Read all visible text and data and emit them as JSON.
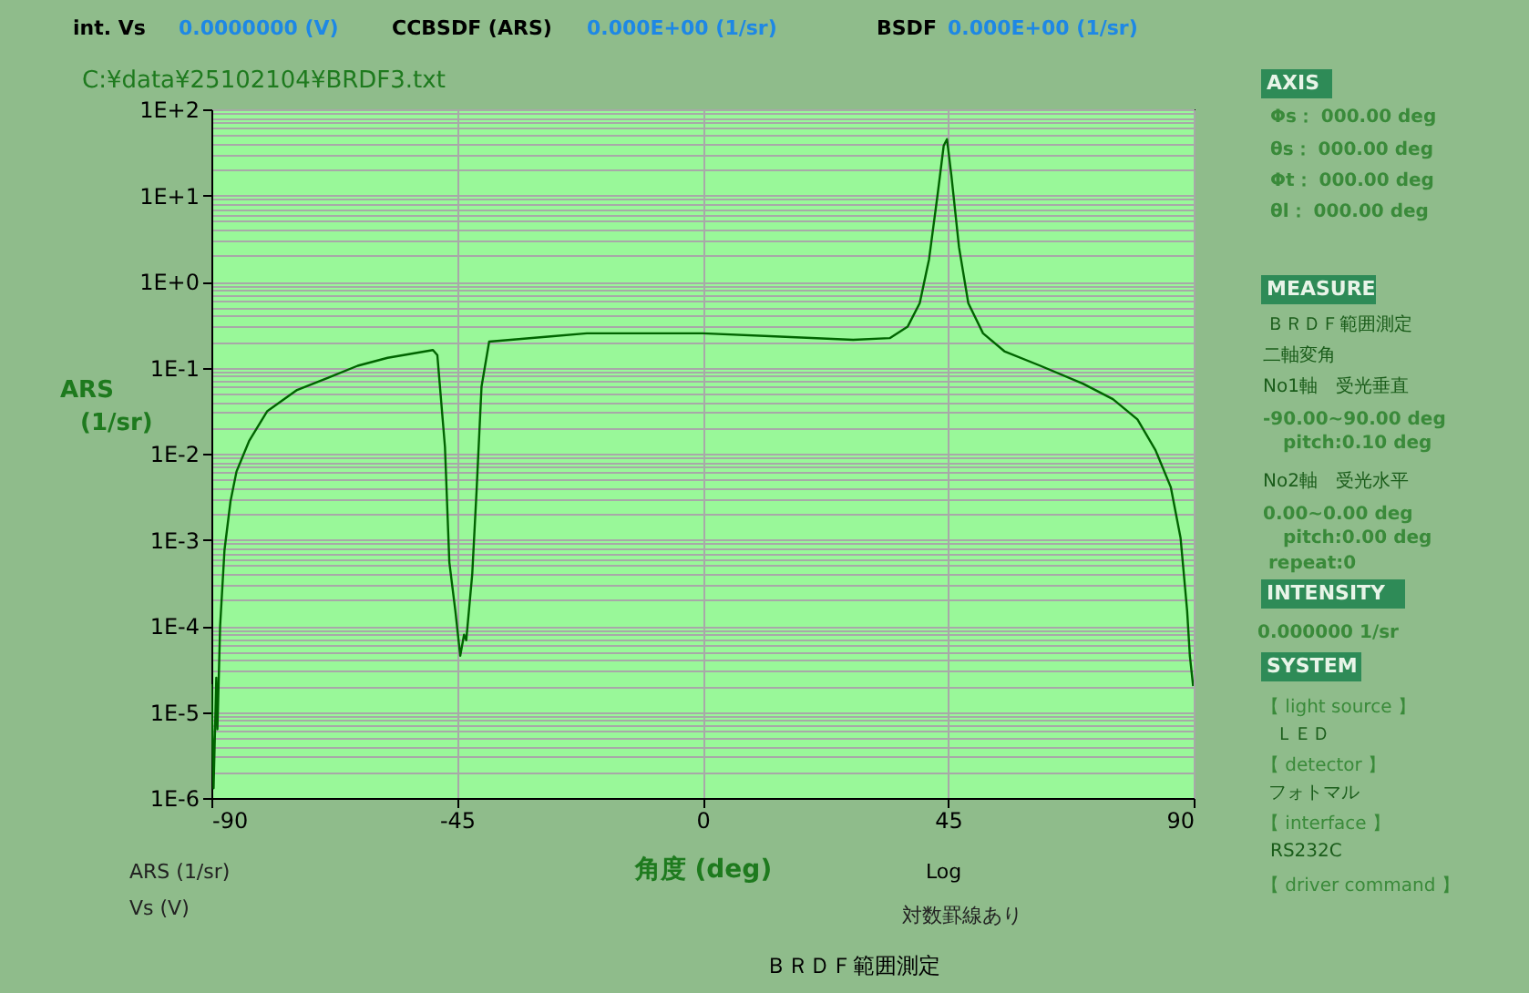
{
  "chart_data": {
    "type": "line",
    "title": "C:¥data¥25102104¥BRDF3.txt",
    "xlabel": "角度 (deg)",
    "ylabel": "ARS (1/sr)",
    "x": [
      -90.0,
      -89.6,
      -89.1,
      -88.9,
      -88.4,
      -87.6,
      -86.5,
      -85.4,
      -83.1,
      -79.8,
      -74.3,
      -68.7,
      -63.2,
      -57.7,
      -49.4,
      -48.6,
      -47.2,
      -46.4,
      -45.3,
      -44.4,
      -43.7,
      -43.3,
      -42.2,
      -41.4,
      -40.5,
      -39.1,
      -27.8,
      -21.2,
      0.0,
      13.3,
      27.6,
      34.3,
      37.6,
      39.8,
      41.5,
      43.1,
      44.2,
      44.8,
      45.6,
      47.0,
      48.7,
      51.4,
      55.3,
      61.9,
      69.7,
      75.2,
      79.7,
      83.0,
      85.8,
      87.6,
      88.8,
      89.3,
      89.9
    ],
    "series": [
      {
        "color": "#006400",
        "values": [
          2.1e-05,
          1.3e-06,
          2.5e-05,
          6.3e-06,
          0.0001,
          0.00076,
          0.0028,
          0.0062,
          0.014,
          0.031,
          0.055,
          0.076,
          0.105,
          0.13,
          0.16,
          0.14,
          0.012,
          0.00055,
          0.00015,
          4.5e-05,
          7.9e-05,
          6.8e-05,
          0.0004,
          0.0038,
          0.06,
          0.2,
          0.23,
          0.25,
          0.25,
          0.23,
          0.21,
          0.22,
          0.3,
          0.56,
          1.8,
          10.5,
          38,
          45,
          17,
          2.5,
          0.56,
          0.25,
          0.155,
          0.105,
          0.065,
          0.043,
          0.025,
          0.011,
          0.0041,
          0.00105,
          0.00015,
          4.5e-05,
          2e-05
        ]
      }
    ],
    "log": "y",
    "grid": true,
    "line_style": "solid",
    "xlim": [
      -90,
      90
    ],
    "xticks": [
      -90,
      -45,
      0,
      45,
      90
    ],
    "ylim": [
      1e-06,
      100
    ],
    "yticks": [
      {
        "value": 1e-06,
        "label": "1E-6"
      },
      {
        "value": 2e-06,
        "label": null
      },
      {
        "value": 3e-06,
        "label": null
      },
      {
        "value": 4e-06,
        "label": null
      },
      {
        "value": 5e-06,
        "label": null
      },
      {
        "value": 6e-06,
        "label": null
      },
      {
        "value": 7e-06,
        "label": null
      },
      {
        "value": 8e-06,
        "label": null
      },
      {
        "value": 9e-06,
        "label": null
      },
      {
        "value": 1e-05,
        "label": "1E-5"
      },
      {
        "value": 2e-05,
        "label": null
      },
      {
        "value": 3e-05,
        "label": null
      },
      {
        "value": 4e-05,
        "label": null
      },
      {
        "value": 5e-05,
        "label": null
      },
      {
        "value": 6e-05,
        "label": null
      },
      {
        "value": 7e-05,
        "label": null
      },
      {
        "value": 8e-05,
        "label": null
      },
      {
        "value": 9e-05,
        "label": null
      },
      {
        "value": 0.0001,
        "label": "1E-4"
      },
      {
        "value": 0.0002,
        "label": null
      },
      {
        "value": 0.0003,
        "label": null
      },
      {
        "value": 0.0004,
        "label": null
      },
      {
        "value": 0.0005,
        "label": null
      },
      {
        "value": 0.0006,
        "label": null
      },
      {
        "value": 0.0007,
        "label": null
      },
      {
        "value": 0.0008,
        "label": null
      },
      {
        "value": 0.0009,
        "label": null
      },
      {
        "value": 0.001,
        "label": "1E-3"
      },
      {
        "value": 0.002,
        "label": null
      },
      {
        "value": 0.003,
        "label": null
      },
      {
        "value": 0.004,
        "label": null
      },
      {
        "value": 0.005,
        "label": null
      },
      {
        "value": 0.006,
        "label": null
      },
      {
        "value": 0.007,
        "label": null
      },
      {
        "value": 0.008,
        "label": null
      },
      {
        "value": 0.009,
        "label": null
      },
      {
        "value": 0.01,
        "label": "1E-2"
      },
      {
        "value": 0.02,
        "label": null
      },
      {
        "value": 0.03,
        "label": null
      },
      {
        "value": 0.04,
        "label": null
      },
      {
        "value": 0.05,
        "label": null
      },
      {
        "value": 0.06,
        "label": null
      },
      {
        "value": 0.07,
        "label": null
      },
      {
        "value": 0.08,
        "label": null
      },
      {
        "value": 0.09,
        "label": null
      },
      {
        "value": 0.1,
        "label": "1E-1"
      },
      {
        "value": 0.2,
        "label": null
      },
      {
        "value": 0.3,
        "label": null
      },
      {
        "value": 0.4,
        "label": null
      },
      {
        "value": 0.5,
        "label": null
      },
      {
        "value": 0.6,
        "label": null
      },
      {
        "value": 0.7,
        "label": null
      },
      {
        "value": 0.8,
        "label": null
      },
      {
        "value": 0.9,
        "label": null
      },
      {
        "value": 1,
        "label": "1E+0"
      },
      {
        "value": 2,
        "label": null
      },
      {
        "value": 3,
        "label": null
      },
      {
        "value": 4,
        "label": null
      },
      {
        "value": 5,
        "label": null
      },
      {
        "value": 6,
        "label": null
      },
      {
        "value": 7,
        "label": null
      },
      {
        "value": 8,
        "label": null
      },
      {
        "value": 9,
        "label": null
      },
      {
        "value": 10,
        "label": "1E+1"
      },
      {
        "value": 20,
        "label": null
      },
      {
        "value": 30,
        "label": null
      },
      {
        "value": 40,
        "label": null
      },
      {
        "value": 50,
        "label": null
      },
      {
        "value": 60,
        "label": null
      },
      {
        "value": 70,
        "label": null
      },
      {
        "value": 80,
        "label": null
      },
      {
        "value": 90,
        "label": null
      },
      {
        "value": 100,
        "label": "1E+2"
      }
    ],
    "annotations": [
      "int. Vs",
      "0.0000000 (V)",
      "CCBSDF (ARS)",
      "0.000E+00 (1/sr)",
      "BSDF",
      "0.000E+00 (1/sr)",
      "AXIS",
      "Φs：  000.00   deg",
      "θs：  000.00   deg",
      "Φt：  000.00   deg",
      "θl：  000.00   deg",
      "MEASURE",
      "ＢＲＤＦ範囲測定",
      "二軸変角",
      "No1軸　受光垂直",
      "-90.00~90.00 deg",
      "pitch:0.10 deg",
      "No2軸　受光水平",
      "0.00~0.00 deg",
      "pitch:0.00 deg",
      "repeat:0",
      "INTENSITY",
      "0.000000   1/sr",
      "SYSTEM",
      "【 light source 】",
      "ＬＥＤ",
      "【 detector 】",
      "フォトマル",
      "【 interface 】",
      "RS232C",
      "【 driver command 】",
      "ARS (1/sr)",
      "Vs (V)",
      "Log",
      "対数罫線あり",
      "ＢＲＤＦ範囲測定"
    ]
  }
}
